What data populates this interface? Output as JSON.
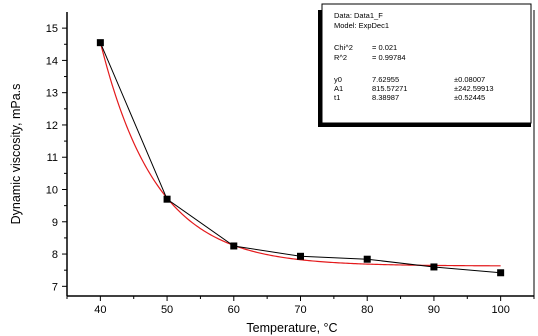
{
  "chart_data": {
    "type": "scatter",
    "title": "",
    "xlabel": "Temperature, °C",
    "ylabel": "Dynamic viscosity, mPa.s",
    "xlim": [
      35,
      105
    ],
    "ylim": [
      6.7,
      15.5
    ],
    "x_ticks": [
      40,
      50,
      60,
      70,
      80,
      90,
      100
    ],
    "y_ticks": [
      7,
      8,
      9,
      10,
      11,
      12,
      13,
      14,
      15
    ],
    "series": [
      {
        "kind": "measured",
        "mark": "square markers joined by straight lines",
        "color": "#000000",
        "x": [
          40,
          50,
          60,
          70,
          80,
          90,
          100
        ],
        "y": [
          14.55,
          9.7,
          8.25,
          7.93,
          7.84,
          7.6,
          7.42
        ]
      },
      {
        "kind": "fit",
        "mark": "smooth curve",
        "color": "#e41a1c",
        "model": "exponential decay",
        "y0": 7.62955,
        "A1": 815.57271,
        "t1": 8.38987
      }
    ],
    "fit_box": {
      "data_line": "Data: Data1_F",
      "model_line": "Model: ExpDec1",
      "chi2_label": "Chi^2",
      "chi2_value": "= 0.021",
      "r2_label": "R^2",
      "r2_value": "= 0.99784",
      "params": [
        {
          "name": "y0",
          "value": "7.62955",
          "error": "±0.08007"
        },
        {
          "name": "A1",
          "value": "815.57271",
          "error": "±242.59913"
        },
        {
          "name": "t1",
          "value": "8.38987",
          "error": "±0.52445"
        }
      ]
    },
    "grid": false,
    "legend": "none"
  }
}
